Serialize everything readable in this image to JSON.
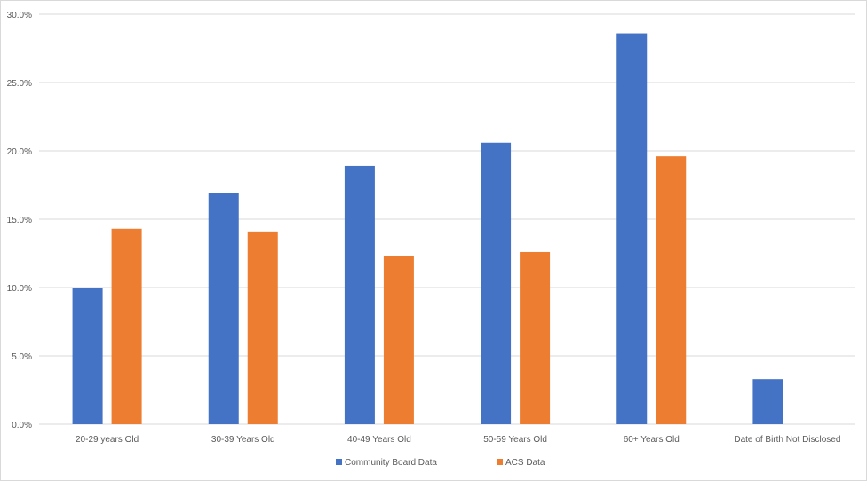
{
  "chart_data": {
    "type": "bar",
    "categories": [
      "20-29 years Old",
      "30-39 Years Old",
      "40-49 Years Old",
      "50-59 Years Old",
      "60+ Years Old",
      "Date of Birth Not Disclosed"
    ],
    "series": [
      {
        "name": "Community Board Data",
        "color": "#4472C4",
        "values": [
          10.0,
          16.9,
          18.9,
          20.6,
          28.6,
          3.3
        ]
      },
      {
        "name": "ACS Data",
        "color": "#ED7D31",
        "values": [
          14.3,
          14.1,
          12.3,
          12.6,
          19.6,
          null
        ]
      }
    ],
    "ylim": [
      0,
      30
    ],
    "yticks": [
      "0.0%",
      "5.0%",
      "10.0%",
      "15.0%",
      "20.0%",
      "25.0%",
      "30.0%"
    ],
    "ytick_values": [
      0,
      5,
      10,
      15,
      20,
      25,
      30
    ],
    "grid": true,
    "legend_position": "bottom",
    "gridline_color": "#d9d9d9"
  }
}
